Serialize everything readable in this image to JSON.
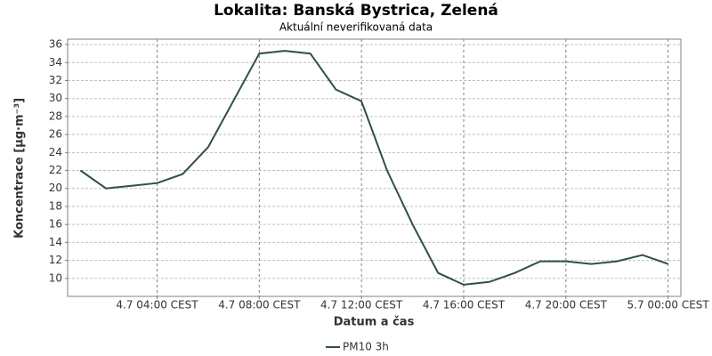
{
  "chart_data": {
    "type": "line",
    "title": "Lokalita: Banská Bystrica, Zelená",
    "subtitle": "Aktuální neverifikovaná data",
    "x_label": "Datum a čas",
    "y_label": "Koncentrace [µg·m⁻³]",
    "x": [
      1,
      2,
      3,
      4,
      5,
      6,
      7,
      8,
      9,
      10,
      11,
      12,
      13,
      14,
      15,
      16,
      17,
      18,
      19,
      20,
      21,
      22,
      23,
      24
    ],
    "series": [
      {
        "name": "PM10 3h",
        "color": "#2f4f4a",
        "values": [
          22.0,
          20.0,
          20.3,
          20.6,
          21.6,
          24.6,
          29.8,
          35.0,
          35.3,
          35.0,
          31.0,
          29.7,
          22.0,
          16.0,
          10.6,
          9.3,
          9.6,
          10.6,
          11.9,
          11.9,
          11.6,
          11.9,
          12.6,
          11.6
        ]
      }
    ],
    "xlim": [
      0.5,
      24.5
    ],
    "xticks": [
      {
        "value": 4,
        "label": "4.7 04:00 CEST"
      },
      {
        "value": 8,
        "label": "4.7 08:00 CEST"
      },
      {
        "value": 12,
        "label": "4.7 12:00 CEST"
      },
      {
        "value": 16,
        "label": "4.7 16:00 CEST"
      },
      {
        "value": 20,
        "label": "4.7 20:00 CEST"
      },
      {
        "value": 24,
        "label": "5.7 00:00 CEST"
      }
    ],
    "ylim": [
      8,
      36.6
    ],
    "yticks": [
      10,
      12,
      14,
      16,
      18,
      20,
      22,
      24,
      26,
      28,
      30,
      32,
      34,
      36
    ],
    "grid": true,
    "legend": "bottom"
  }
}
